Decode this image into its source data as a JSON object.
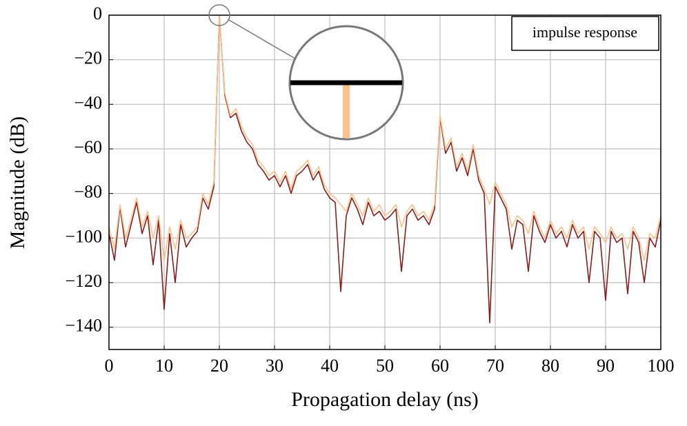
{
  "chart_data": {
    "type": "line",
    "xlabel": "Propagation delay (ns)",
    "ylabel": "Magnitude (dB)",
    "legend_label": "impulse response",
    "legend_corner": "upper right",
    "grid": true,
    "xlim": [
      0,
      100
    ],
    "ylim": [
      -150,
      0
    ],
    "xticks": [
      0,
      10,
      20,
      30,
      40,
      50,
      60,
      70,
      80,
      90,
      100
    ],
    "yticks": [
      0,
      {
        "value": -20,
        "label": "−20"
      },
      {
        "value": -40,
        "label": "−40"
      },
      {
        "value": -60,
        "label": "−60"
      },
      {
        "value": -80,
        "label": "−80"
      },
      {
        "value": -100,
        "label": "−100"
      },
      {
        "value": -120,
        "label": "−120"
      },
      {
        "value": -140,
        "label": "−140"
      }
    ],
    "x": [
      0,
      1,
      2,
      3,
      4,
      5,
      6,
      7,
      8,
      9,
      10,
      11,
      12,
      13,
      14,
      15,
      16,
      17,
      18,
      19,
      20,
      21,
      22,
      23,
      24,
      25,
      26,
      27,
      28,
      29,
      30,
      31,
      32,
      33,
      34,
      35,
      36,
      37,
      38,
      39,
      40,
      41,
      42,
      43,
      44,
      45,
      46,
      47,
      48,
      49,
      50,
      51,
      52,
      53,
      54,
      55,
      56,
      57,
      58,
      59,
      60,
      61,
      62,
      63,
      64,
      65,
      66,
      67,
      68,
      69,
      70,
      71,
      72,
      73,
      74,
      75,
      76,
      77,
      78,
      79,
      80,
      81,
      82,
      83,
      84,
      85,
      86,
      87,
      88,
      89,
      90,
      91,
      92,
      93,
      94,
      95,
      96,
      97,
      98,
      99,
      100
    ],
    "series": [
      {
        "color": "#8b1a1a",
        "values": [
          -98,
          -110,
          -86,
          -104,
          -94,
          -84,
          -98,
          -90,
          -112,
          -92,
          -132,
          -98,
          -120,
          -94,
          -104,
          -100,
          -97,
          -82,
          -87,
          -77,
          0,
          -36,
          -46,
          -44,
          -52,
          -57,
          -60,
          -67,
          -70,
          -74,
          -72,
          -77,
          -72,
          -80,
          -72,
          -70,
          -67,
          -74,
          -70,
          -78,
          -82,
          -84,
          -124,
          -90,
          -82,
          -87,
          -94,
          -84,
          -90,
          -88,
          -92,
          -90,
          -87,
          -115,
          -90,
          -87,
          -92,
          -90,
          -94,
          -87,
          -46,
          -62,
          -57,
          -70,
          -64,
          -72,
          -60,
          -74,
          -80,
          -138,
          -77,
          -82,
          -87,
          -105,
          -92,
          -94,
          -115,
          -90,
          -97,
          -102,
          -94,
          -100,
          -97,
          -104,
          -94,
          -100,
          -97,
          -120,
          -97,
          -100,
          -128,
          -97,
          -102,
          -100,
          -125,
          -97,
          -102,
          -120,
          -100,
          -104,
          -92
        ]
      },
      {
        "color": "#fdc086",
        "values": [
          -95,
          -105,
          -85,
          -100,
          -92,
          -82,
          -95,
          -88,
          -100,
          -90,
          -110,
          -95,
          -105,
          -92,
          -100,
          -98,
          -95,
          -80,
          -85,
          -75,
          0,
          -35,
          -45,
          -42,
          -50,
          -55,
          -58,
          -65,
          -68,
          -72,
          -70,
          -75,
          -70,
          -78,
          -70,
          -68,
          -65,
          -72,
          -68,
          -76,
          -80,
          -82,
          -85,
          -88,
          -80,
          -85,
          -90,
          -82,
          -88,
          -85,
          -90,
          -88,
          -85,
          -95,
          -88,
          -85,
          -90,
          -88,
          -92,
          -85,
          -45,
          -60,
          -55,
          -68,
          -62,
          -70,
          -58,
          -72,
          -78,
          -85,
          -75,
          -80,
          -85,
          -95,
          -90,
          -92,
          -98,
          -88,
          -95,
          -100,
          -92,
          -98,
          -95,
          -100,
          -92,
          -98,
          -95,
          -105,
          -95,
          -98,
          -102,
          -95,
          -100,
          -98,
          -105,
          -95,
          -100,
          -110,
          -98,
          -100,
          -90
        ]
      }
    ]
  }
}
